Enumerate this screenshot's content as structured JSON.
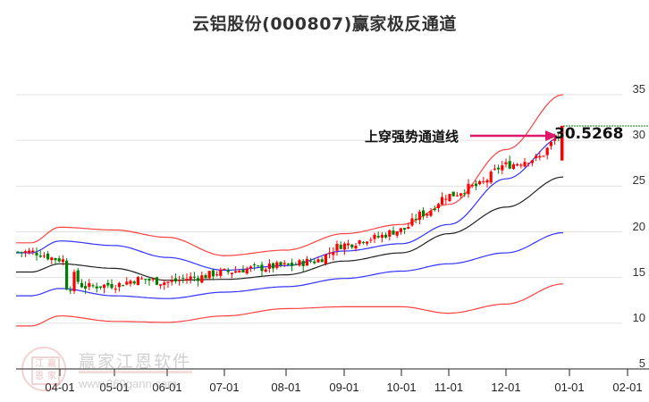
{
  "title": "云铝股份(000807)赢家极反通道",
  "annotation": {
    "label": "上穿强势通道线",
    "value": "30.5268",
    "arrow_color": "#e0186c"
  },
  "watermark": {
    "logo_chars": [
      "江",
      "赢",
      "恩",
      "家"
    ],
    "name": "赢家江恩软件",
    "url": "www.360gann.com"
  },
  "colors": {
    "up": "#ff0000",
    "down": "#008000",
    "outer_band": "#ff4040",
    "inner_band": "#3333ff",
    "mid_line": "#222222",
    "grid": "#e0e0e0",
    "dashed_level": "#008000"
  },
  "chart_data": {
    "type": "candlestick",
    "title": "云铝股份(000807)赢家极反通道",
    "xlabel": "",
    "ylabel": "",
    "ylim": [
      5,
      35
    ],
    "y_ticks": [
      35,
      30,
      25,
      20,
      15,
      10,
      5
    ],
    "x_ticks": [
      "04-01",
      "05-01",
      "06-01",
      "07-01",
      "08-01",
      "09-01",
      "10-01",
      "11-01",
      "12-01",
      "01-01",
      "02-01"
    ],
    "grid": true,
    "legend": null,
    "last_price_marker": 30.5268,
    "series": [
      {
        "name": "upper_outer_band",
        "color": "red",
        "x": [
          "03-15",
          "04-01",
          "05-01",
          "06-01",
          "07-01",
          "08-01",
          "09-01",
          "10-01",
          "11-01",
          "12-01",
          "12-31"
        ],
        "values": [
          18.8,
          20.5,
          20.2,
          19.4,
          17.4,
          18.0,
          19.8,
          20.8,
          23.0,
          29.0,
          35.0
        ]
      },
      {
        "name": "upper_inner_band",
        "color": "blue",
        "x": [
          "03-15",
          "04-01",
          "05-01",
          "06-01",
          "07-01",
          "08-01",
          "09-01",
          "10-01",
          "11-01",
          "12-01",
          "12-31"
        ],
        "values": [
          17.7,
          19.0,
          18.5,
          17.2,
          15.8,
          16.3,
          17.9,
          18.7,
          20.8,
          25.8,
          30.4
        ]
      },
      {
        "name": "middle_line",
        "color": "black",
        "x": [
          "03-15",
          "04-01",
          "05-01",
          "06-01",
          "07-01",
          "08-01",
          "09-01",
          "10-01",
          "11-01",
          "12-01",
          "12-31"
        ],
        "values": [
          15.6,
          16.5,
          16.0,
          14.7,
          14.8,
          15.3,
          16.8,
          17.7,
          19.8,
          22.7,
          26.0
        ]
      },
      {
        "name": "lower_inner_band",
        "color": "blue",
        "x": [
          "03-15",
          "04-01",
          "05-01",
          "06-01",
          "07-01",
          "08-01",
          "09-01",
          "10-01",
          "11-01",
          "12-01",
          "12-31"
        ],
        "values": [
          13.0,
          13.8,
          13.0,
          12.7,
          13.4,
          14.0,
          14.9,
          15.7,
          16.5,
          17.7,
          19.9
        ]
      },
      {
        "name": "lower_outer_band",
        "color": "red",
        "x": [
          "03-15",
          "04-01",
          "05-01",
          "06-01",
          "07-01",
          "08-01",
          "09-01",
          "10-01",
          "11-01",
          "12-01",
          "12-31"
        ],
        "values": [
          9.7,
          10.8,
          10.2,
          10.1,
          10.8,
          11.6,
          11.8,
          11.8,
          11.1,
          12.1,
          14.3
        ]
      },
      {
        "name": "close_price",
        "color": "candles",
        "x": [
          "03-15",
          "04-01",
          "04-15",
          "05-01",
          "05-15",
          "06-01",
          "06-15",
          "07-01",
          "07-15",
          "08-01",
          "08-15",
          "09-01",
          "09-15",
          "10-01",
          "10-15",
          "11-01",
          "11-15",
          "12-01",
          "12-15",
          "12-31"
        ],
        "values": [
          17.8,
          17.0,
          14.0,
          14.2,
          14.8,
          14.5,
          15.0,
          15.6,
          16.0,
          16.3,
          16.8,
          18.6,
          19.3,
          20.2,
          22.0,
          24.0,
          25.0,
          27.3,
          28.0,
          30.5
        ]
      }
    ]
  }
}
